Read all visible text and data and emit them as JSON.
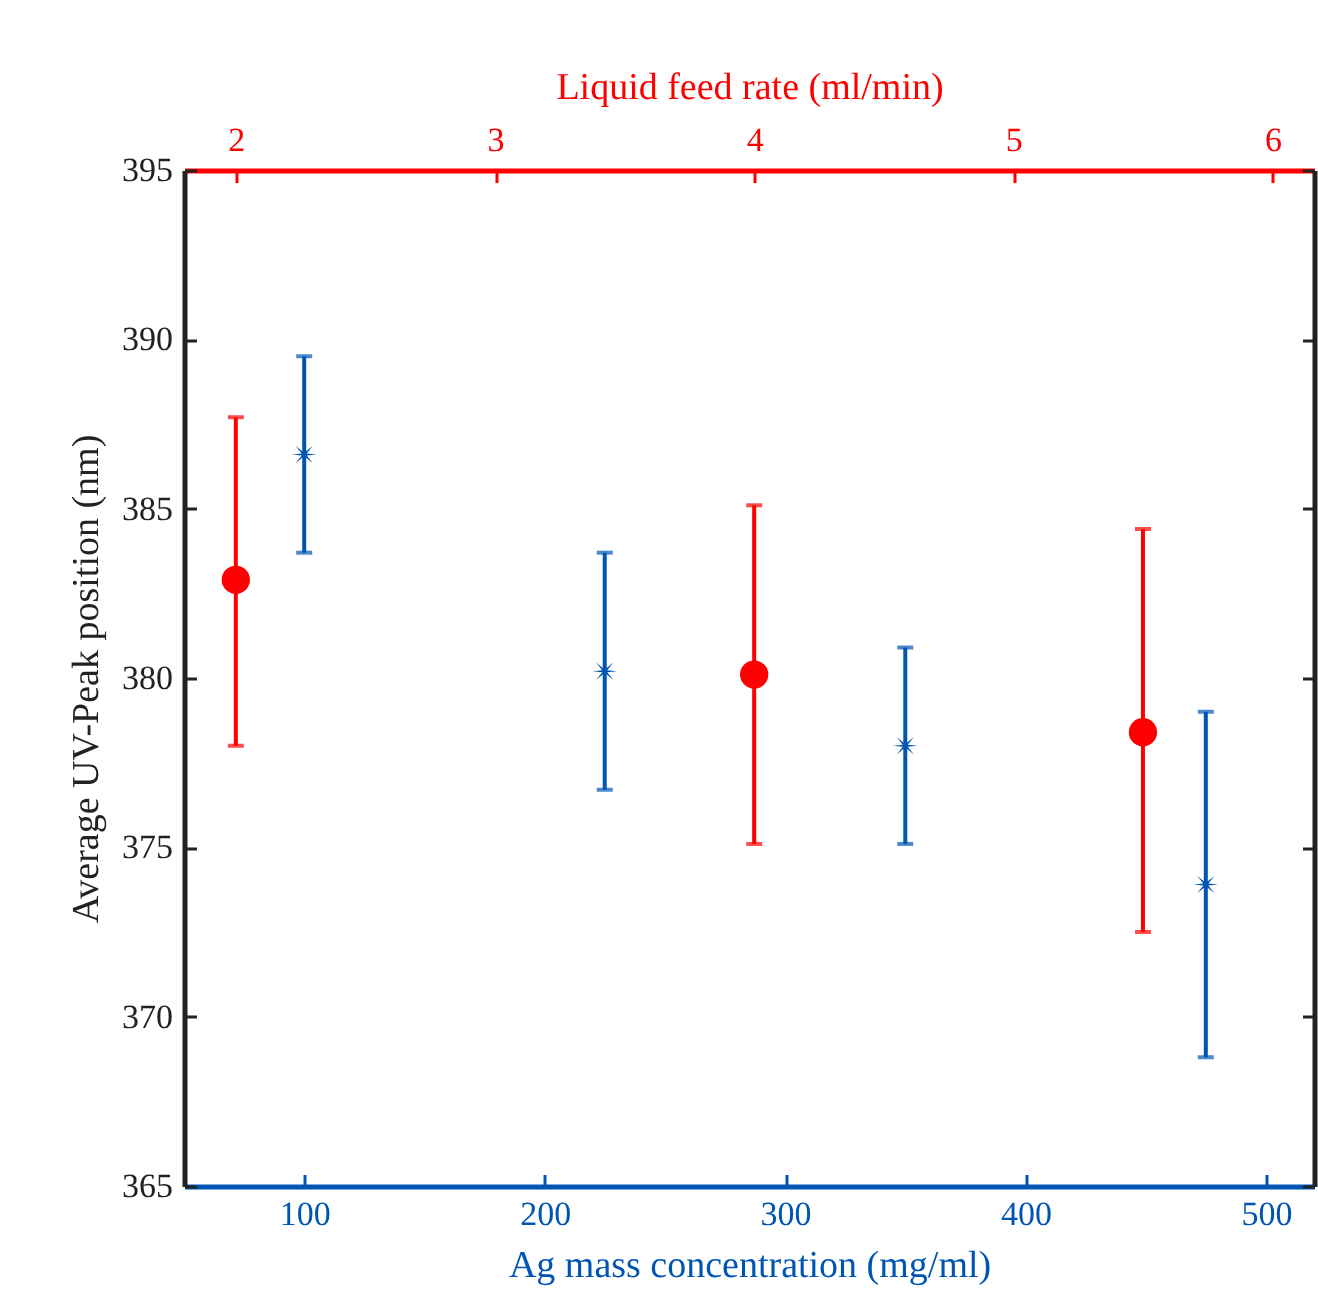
{
  "chart_data": {
    "type": "scatter",
    "xlabel": "Ag mass concentration (mg/ml)",
    "x2label": "Liquid feed rate (ml/min)",
    "ylabel": "Average UV-Peak position (nm)",
    "xlim": [
      50,
      520
    ],
    "xticks": [
      100,
      200,
      300,
      400,
      500
    ],
    "x2lim": [
      1.8,
      6.16
    ],
    "x2ticks": [
      2,
      3,
      4,
      5,
      6
    ],
    "ylim": [
      365,
      395
    ],
    "yticks": [
      365,
      370,
      375,
      380,
      385,
      390,
      395
    ],
    "series": [
      {
        "color": "#0055b3",
        "marker": "star",
        "x": [
          100,
          225,
          350,
          475
        ],
        "values": [
          386.6,
          380.2,
          378.0,
          373.9
        ],
        "errors": [
          [
            383.7,
            389.5
          ],
          [
            376.7,
            383.7
          ],
          [
            375.1,
            380.9
          ],
          [
            368.8,
            379.0
          ]
        ]
      },
      {
        "color": "#ff0000",
        "marker": "circle",
        "axis": "x2",
        "x": [
          2,
          4,
          5.5
        ],
        "values": [
          382.9,
          380.1,
          378.4
        ],
        "errors": [
          [
            378.0,
            387.7
          ],
          [
            375.1,
            385.1
          ],
          [
            372.5,
            384.4
          ]
        ]
      }
    ]
  }
}
